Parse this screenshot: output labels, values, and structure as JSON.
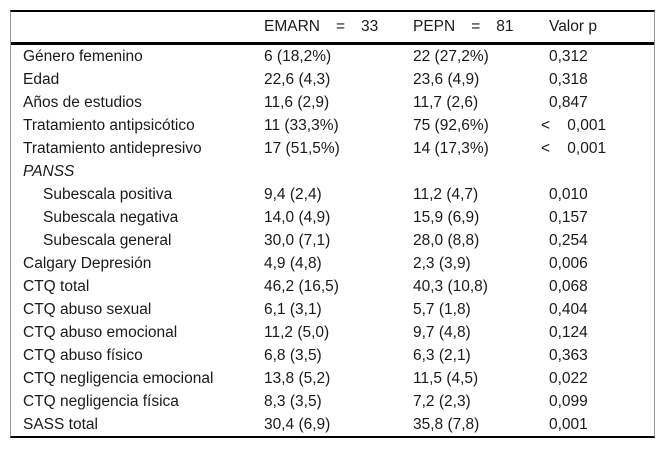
{
  "accent_colors": {
    "text": "#1a1a1a",
    "rule_heavy": "#000000",
    "rule_light": "#9a9a9a",
    "background": "#ffffff"
  },
  "table": {
    "header": {
      "col2": {
        "label": "EMARN",
        "eq": "=",
        "value": "33"
      },
      "col3": {
        "label": "PEPN",
        "eq": "=",
        "value": "81"
      },
      "col4": "Valor p"
    },
    "rows": [
      {
        "label": "Género femenino",
        "indent": false,
        "italic": false,
        "emarn": "6 (18,2%)",
        "pepn": "22 (27,2%)",
        "p": "0,312"
      },
      {
        "label": "Edad",
        "indent": false,
        "italic": false,
        "emarn": "22,6 (4,3)",
        "pepn": "23,6 (4,9)",
        "p": "0,318"
      },
      {
        "label": "Años de estudios",
        "indent": false,
        "italic": false,
        "emarn": "11,6 (2,9)",
        "pepn": "11,7 (2,6)",
        "p": "0,847"
      },
      {
        "label": "Tratamiento antipsicótico",
        "indent": false,
        "italic": false,
        "emarn": "11 (33,3%)",
        "pepn": "75 (92,6%)",
        "p": "<    0,001"
      },
      {
        "label": "Tratamiento antidepresivo",
        "indent": false,
        "italic": false,
        "emarn": "17 (51,5%)",
        "pepn": "14 (17,3%)",
        "p": "<    0,001"
      },
      {
        "label": "PANSS",
        "indent": false,
        "italic": true,
        "emarn": "",
        "pepn": "",
        "p": ""
      },
      {
        "label": "Subescala positiva",
        "indent": true,
        "italic": false,
        "emarn": "9,4 (2,4)",
        "pepn": "11,2 (4,7)",
        "p": "0,010"
      },
      {
        "label": "Subescala negativa",
        "indent": true,
        "italic": false,
        "emarn": "14,0 (4,9)",
        "pepn": "15,9 (6,9)",
        "p": "0,157"
      },
      {
        "label": "Subescala general",
        "indent": true,
        "italic": false,
        "emarn": "30,0 (7,1)",
        "pepn": "28,0 (8,8)",
        "p": "0,254"
      },
      {
        "label": "Calgary Depresión",
        "indent": false,
        "italic": false,
        "emarn": "4,9 (4,8)",
        "pepn": "2,3 (3,9)",
        "p": "0,006"
      },
      {
        "label": "CTQ total",
        "indent": false,
        "italic": false,
        "emarn": "46,2 (16,5)",
        "pepn": "40,3 (10,8)",
        "p": "0,068"
      },
      {
        "label": "CTQ abuso sexual",
        "indent": false,
        "italic": false,
        "emarn": "6,1 (3,1)",
        "pepn": "5,7 (1,8)",
        "p": "0,404"
      },
      {
        "label": "CTQ abuso emocional",
        "indent": false,
        "italic": false,
        "emarn": "11,2 (5,0)",
        "pepn": "9,7 (4,8)",
        "p": "0,124"
      },
      {
        "label": "CTQ abuso físico",
        "indent": false,
        "italic": false,
        "emarn": "6,8 (3,5)",
        "pepn": "6,3 (2,1)",
        "p": "0,363"
      },
      {
        "label": "CTQ negligencia emocional",
        "indent": false,
        "italic": false,
        "emarn": "13,8 (5,2)",
        "pepn": "11,5 (4,5)",
        "p": "0,022"
      },
      {
        "label": "CTQ negligencia física",
        "indent": false,
        "italic": false,
        "emarn": "8,3 (3,5)",
        "pepn": "7,2 (2,3)",
        "p": "0,099"
      },
      {
        "label": "SASS total",
        "indent": false,
        "italic": false,
        "emarn": "30,4 (6,9)",
        "pepn": "35,8 (7,8)",
        "p": "0,001"
      }
    ]
  }
}
